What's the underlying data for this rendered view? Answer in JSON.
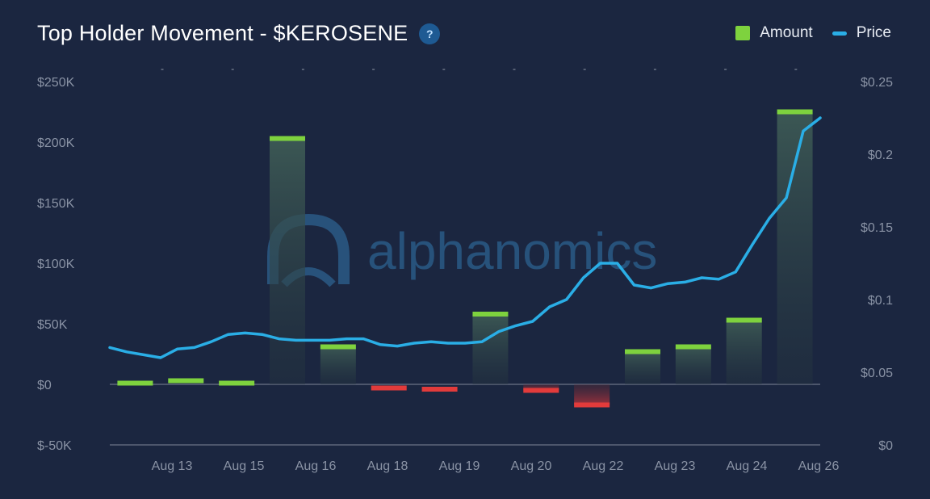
{
  "header": {
    "title": "Top Holder Movement - $KEROSENE",
    "help_label": "?"
  },
  "legend": {
    "amount_label": "Amount",
    "price_label": "Price"
  },
  "watermark": "alphanomics",
  "colors": {
    "background": "#1b2640",
    "positive": "#7ed23e",
    "negative": "#e23b3b",
    "price": "#2aaee6"
  },
  "chart_data": {
    "type": "bar",
    "left_axis": {
      "ticks": [
        -50000,
        0,
        50000,
        100000,
        150000,
        200000,
        250000
      ],
      "tick_labels": [
        "$-50K",
        "$0",
        "$50K",
        "$100K",
        "$150K",
        "$200K",
        "$250K"
      ],
      "range": [
        -50000,
        250000
      ]
    },
    "right_axis": {
      "ticks": [
        0,
        0.05,
        0.1,
        0.15,
        0.2,
        0.25
      ],
      "tick_labels": [
        "$0",
        "$0.05",
        "$0.1",
        "$0.15",
        "$0.2",
        "$0.25"
      ],
      "range": [
        0,
        0.25
      ]
    },
    "x_tick_labels": [
      "Aug 13",
      "Aug 15",
      "Aug 16",
      "Aug 18",
      "Aug 19",
      "Aug 20",
      "Aug 22",
      "Aug 23",
      "Aug 24",
      "Aug 26"
    ],
    "series": [
      {
        "name": "Amount",
        "values": [
          1000,
          3000,
          1000,
          203000,
          31000,
          -3000,
          -4000,
          58000,
          -5000,
          -17000,
          27000,
          31000,
          53000,
          225000
        ]
      },
      {
        "name": "Price",
        "values": [
          0.067,
          0.064,
          0.062,
          0.06,
          0.066,
          0.067,
          0.071,
          0.076,
          0.077,
          0.076,
          0.073,
          0.072,
          0.072,
          0.072,
          0.073,
          0.073,
          0.069,
          0.068,
          0.07,
          0.071,
          0.07,
          0.07,
          0.071,
          0.078,
          0.082,
          0.085,
          0.095,
          0.1,
          0.115,
          0.125,
          0.125,
          0.11,
          0.108,
          0.111,
          0.112,
          0.115,
          0.114,
          0.119,
          0.138,
          0.156,
          0.17,
          0.216,
          0.225
        ]
      }
    ]
  }
}
